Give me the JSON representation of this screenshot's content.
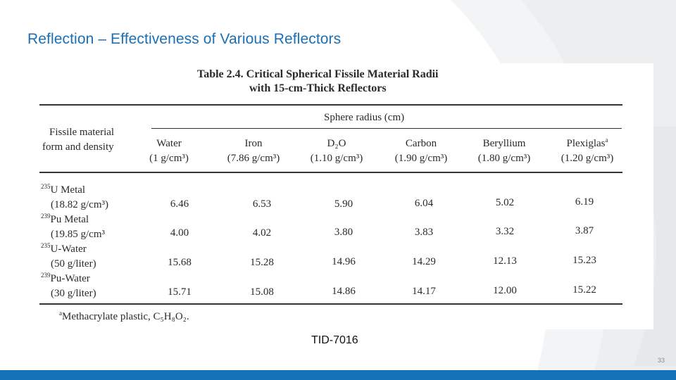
{
  "slide": {
    "title": "Reflection – Effectiveness of Various Reflectors",
    "source": "TID-7016",
    "page_number": "33"
  },
  "table": {
    "caption_line1": "Table 2.4. Critical Spherical Fissile Material Radii",
    "caption_line2": "with 15-cm-Thick Reflectors",
    "span_header": "Sphere radius (cm)",
    "row_header_1": "Fissile material",
    "row_header_2": "form and density",
    "columns": [
      {
        "name": "Water",
        "density": "(1 g/cm³)"
      },
      {
        "name": "Iron",
        "density": "(7.86 g/cm³)"
      },
      {
        "name": "D₂O",
        "density": "(1.10 g/cm³)"
      },
      {
        "name": "Carbon",
        "density": "(1.90 g/cm³)"
      },
      {
        "name": "Beryllium",
        "density": "(1.80 g/cm³)"
      },
      {
        "name": "Plexiglas",
        "density": "(1.20 g/cm³)",
        "marker": "a"
      }
    ],
    "rows": [
      {
        "iso": "235",
        "name": "U Metal",
        "density": "(18.82 g/cm³)",
        "values": [
          "6.46",
          "6.53",
          "5.90",
          "6.04",
          "5.02",
          "6.19"
        ]
      },
      {
        "iso": "239",
        "name": "Pu Metal",
        "density": "(19.85 g/cm³",
        "values": [
          "4.00",
          "4.02",
          "3.80",
          "3.83",
          "3.32",
          "3.87"
        ]
      },
      {
        "iso": "235",
        "name": "U-Water",
        "density": "(50 g/liter)",
        "values": [
          "15.68",
          "15.28",
          "14.96",
          "14.29",
          "12.13",
          "15.23"
        ]
      },
      {
        "iso": "239",
        "name": "Pu-Water",
        "density": "(30 g/liter)",
        "values": [
          "15.71",
          "15.08",
          "14.86",
          "14.17",
          "12.00",
          "15.22"
        ]
      }
    ],
    "footnote": {
      "marker": "a",
      "text": "Methacrylate plastic, C₅H₈O₂."
    }
  },
  "colors": {
    "title": "#1b6fb5",
    "bar": "#1672b8"
  }
}
